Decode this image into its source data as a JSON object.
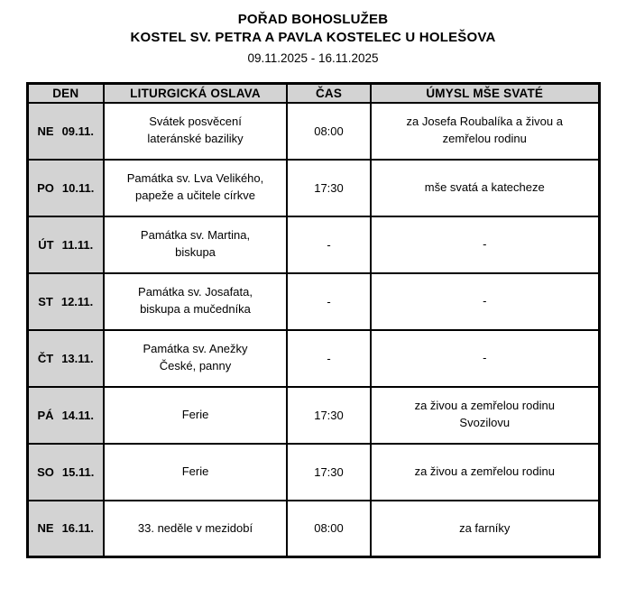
{
  "header": {
    "title": "POŘAD BOHOSLUŽEB",
    "subtitle": "KOSTEL SV. PETRA A PAVLA KOSTELEC U HOLEŠOVA",
    "date_range": "09.11.2025 - 16.11.2025"
  },
  "colors": {
    "cell_gray": "#d3d3d3",
    "border": "#000000",
    "text": "#000000",
    "background": "#ffffff"
  },
  "table": {
    "columns": [
      "DEN",
      "LITURGICKÁ OSLAVA",
      "ČAS",
      "ÚMYSL MŠE SVATÉ"
    ],
    "rows": [
      {
        "day": "NE",
        "date": "09.11.",
        "celebration": "Svátek posvěcení\nlateránské baziliky",
        "time": "08:00",
        "intention": "za Josefa Roubalíka a živou a\nzemřelou rodinu"
      },
      {
        "day": "PO",
        "date": "10.11.",
        "celebration": "Památka sv. Lva Velikého,\npapeže a učitele církve",
        "time": "17:30",
        "intention": "mše svatá a katecheze"
      },
      {
        "day": "ÚT",
        "date": "11.11.",
        "celebration": "Památka sv. Martina,\nbiskupa",
        "time": "-",
        "intention": "-"
      },
      {
        "day": "ST",
        "date": "12.11.",
        "celebration": "Památka sv. Josafata,\nbiskupa a mučedníka",
        "time": "-",
        "intention": "-"
      },
      {
        "day": "ČT",
        "date": "13.11.",
        "celebration": "Památka sv. Anežky\nČeské, panny",
        "time": "-",
        "intention": "-"
      },
      {
        "day": "PÁ",
        "date": "14.11.",
        "celebration": "Ferie",
        "time": "17:30",
        "intention": "za živou a zemřelou rodinu\nSvozilovu"
      },
      {
        "day": "SO",
        "date": "15.11.",
        "celebration": "Ferie",
        "time": "17:30",
        "intention": "za živou a zemřelou rodinu"
      },
      {
        "day": "NE",
        "date": "16.11.",
        "celebration": "33. neděle v mezidobí",
        "time": "08:00",
        "intention": "za farníky"
      }
    ]
  }
}
